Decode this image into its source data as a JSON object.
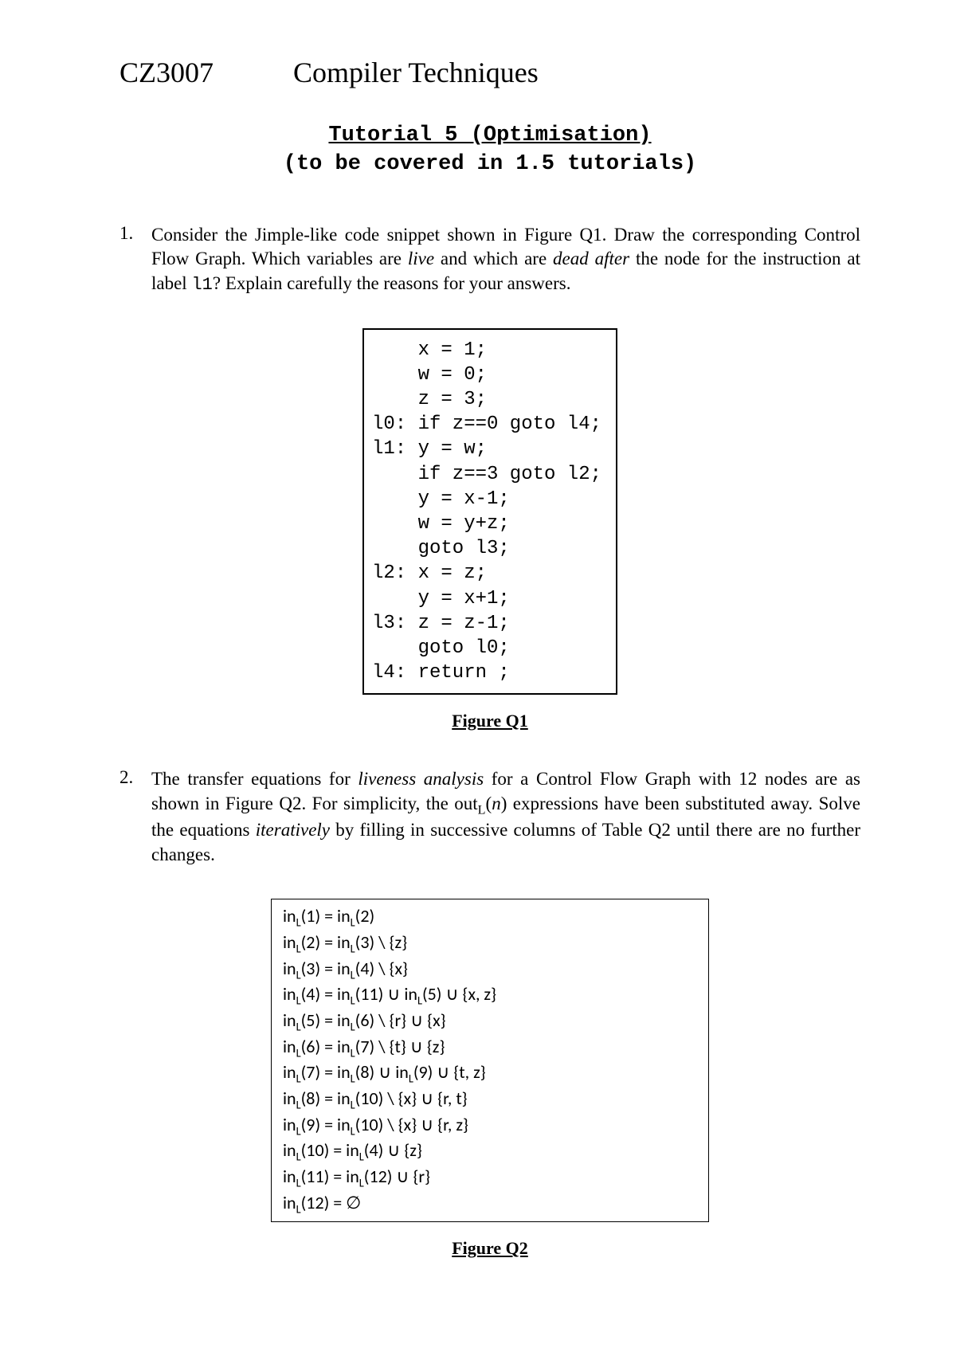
{
  "header": {
    "course_code": "CZ3007",
    "title": "Compiler Techniques"
  },
  "subtitle": {
    "line1": "Tutorial 5 (Optimisation)",
    "line2": "(to be covered in 1.5 tutorials)"
  },
  "q1": {
    "number": "1.",
    "text_pre": "Consider the Jimple-like code snippet shown in Figure Q1. Draw the corresponding Control Flow Graph. Which variables are ",
    "live": "live",
    "text_mid1": " and which are ",
    "dead_after": "dead after",
    "text_mid2": " the node for the instruction at label ",
    "label": "l1",
    "text_post": "? Explain carefully the reasons for your answers.",
    "code": "    x = 1;\n    w = 0;\n    z = 3;\nl0: if z==0 goto l4;\nl1: y = w;\n    if z==3 goto l2;\n    y = x-1;\n    w = y+z;\n    goto l3;\nl2: x = z;\n    y = x+1;\nl3: z = z-1;\n    goto l0;\nl4: return ;",
    "caption": "Figure Q1"
  },
  "q2": {
    "number": "2.",
    "text_pre": "The transfer equations for ",
    "liveness": "liveness analysis",
    "text_mid1": " for a Control Flow Graph with 12 nodes are as shown in Figure Q2. For simplicity, the out",
    "sub_L": "L",
    "out_n": "n",
    "text_mid2": ") expressions have been substituted away.  Solve the equations ",
    "iteratively": "iteratively",
    "text_post": " by filling in successive columns of Table Q2 until there are no further changes.",
    "caption": "Figure Q2",
    "equations": {
      "e1": {
        "lhs": "in",
        "lhs_sub": "L",
        "lhs_arg": "(1)  = in",
        "r1_sub": "L",
        "rhs": "(2)"
      },
      "e2": {
        "lhs": "in",
        "lhs_sub": "L",
        "lhs_arg": "(2)  = in",
        "r1_sub": "L",
        "rhs": "(3) \\ {z}"
      },
      "e3": {
        "lhs": "in",
        "lhs_sub": "L",
        "lhs_arg": "(3)  = in",
        "r1_sub": "L",
        "rhs": "(4) \\ {x}"
      },
      "e4": {
        "lhs": "in",
        "lhs_sub": "L",
        "lhs_arg": "(4)  = in",
        "r1_sub": "L",
        "rhs": "(11) ∪ in",
        "r2_sub": "L",
        "rhs2": "(5) ∪ {x, z}"
      },
      "e5": {
        "lhs": "in",
        "lhs_sub": "L",
        "lhs_arg": "(5)  = in",
        "r1_sub": "L",
        "rhs": "(6) \\ {r} ∪ {x}"
      },
      "e6": {
        "lhs": "in",
        "lhs_sub": "L",
        "lhs_arg": "(6)  = in",
        "r1_sub": "L",
        "rhs": "(7) \\ {t} ∪ {z}"
      },
      "e7": {
        "lhs": "in",
        "lhs_sub": "L",
        "lhs_arg": "(7)  = in",
        "r1_sub": "L",
        "rhs": "(8) ∪ in",
        "r2_sub": "L",
        "rhs2": "(9) ∪ {t, z}"
      },
      "e8": {
        "lhs": "in",
        "lhs_sub": "L",
        "lhs_arg": "(8)  = in",
        "r1_sub": "L",
        "rhs": "(10) \\ {x} ∪ {r, t}"
      },
      "e9": {
        "lhs": "in",
        "lhs_sub": "L",
        "lhs_arg": "(9)  = in",
        "r1_sub": "L",
        "rhs": "(10) \\ {x} ∪ {r, z}"
      },
      "e10": {
        "lhs": "in",
        "lhs_sub": "L",
        "lhs_arg": "(10) = in",
        "r1_sub": "L",
        "rhs": "(4) ∪ {z}"
      },
      "e11": {
        "lhs": "in",
        "lhs_sub": "L",
        "lhs_arg": "(11) = in",
        "r1_sub": "L",
        "rhs": "(12) ∪ {r}"
      },
      "e12": {
        "lhs": "in",
        "lhs_sub": "L",
        "lhs_arg": "(12) = ∅"
      }
    }
  },
  "colors": {
    "text": "#000000",
    "background": "#ffffff",
    "border": "#000000"
  }
}
